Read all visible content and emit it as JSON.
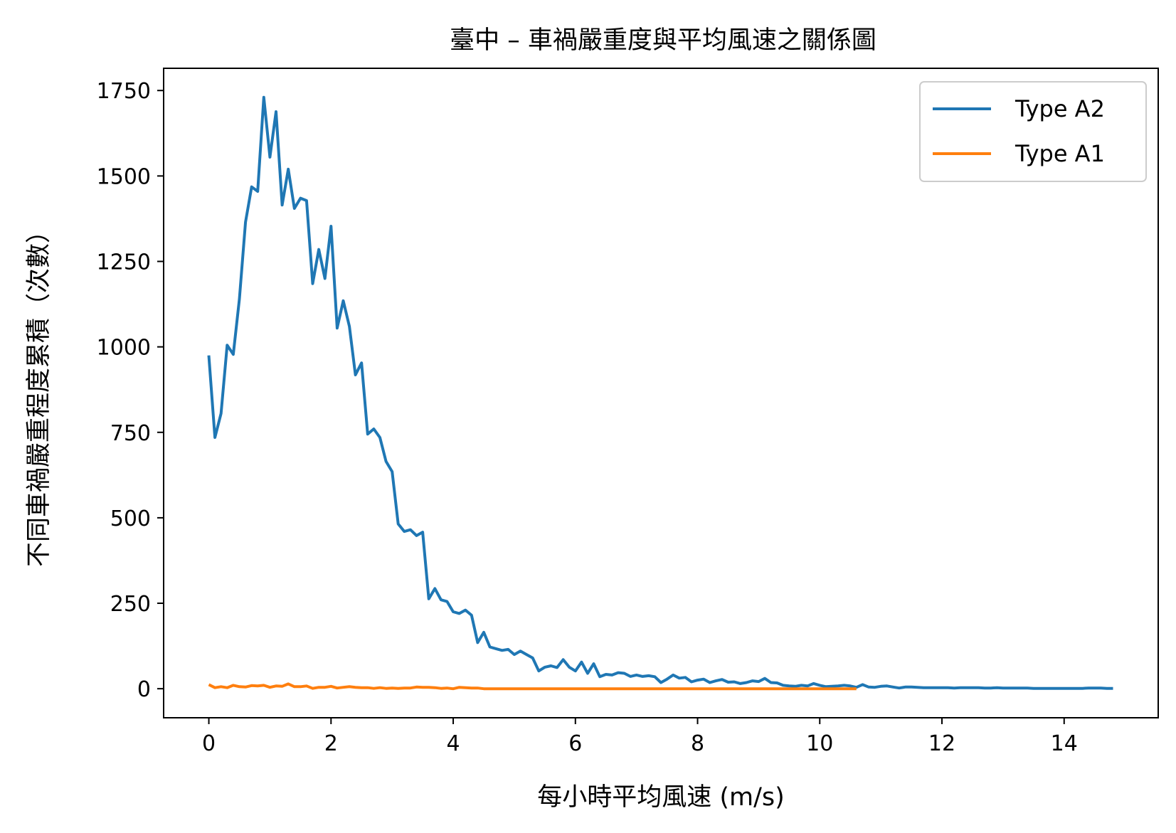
{
  "chart_data": {
    "type": "line",
    "title": "臺中 – 車禍嚴重度與平均風速之關係圖",
    "xlabel": "每小時平均風速 (m/s)",
    "ylabel": "不同車禍嚴重程度累積（次數）",
    "xlim": [
      -0.74,
      15.54
    ],
    "ylim": [
      -85,
      1815
    ],
    "xticks": [
      0,
      2,
      4,
      6,
      8,
      10,
      12,
      14
    ],
    "yticks": [
      0,
      250,
      500,
      750,
      1000,
      1250,
      1500,
      1750
    ],
    "grid": false,
    "legend_position": "top-right",
    "series": [
      {
        "name": "Type A2",
        "color": "#1f77b4",
        "x": [
          0,
          0.1,
          0.2,
          0.3,
          0.4,
          0.5,
          0.6,
          0.7,
          0.8,
          0.9,
          1.0,
          1.1,
          1.2,
          1.3,
          1.4,
          1.5,
          1.6,
          1.7,
          1.8,
          1.9,
          2.0,
          2.1,
          2.2,
          2.3,
          2.4,
          2.5,
          2.6,
          2.7,
          2.8,
          2.9,
          3.0,
          3.1,
          3.2,
          3.3,
          3.4,
          3.5,
          3.6,
          3.7,
          3.8,
          3.9,
          4.0,
          4.1,
          4.2,
          4.3,
          4.4,
          4.5,
          4.6,
          4.7,
          4.8,
          4.9,
          5.0,
          5.1,
          5.2,
          5.3,
          5.4,
          5.5,
          5.6,
          5.7,
          5.8,
          5.9,
          6.0,
          6.1,
          6.2,
          6.3,
          6.4,
          6.5,
          6.6,
          6.7,
          6.8,
          6.9,
          7.0,
          7.1,
          7.2,
          7.3,
          7.4,
          7.5,
          7.6,
          7.7,
          7.8,
          7.9,
          8.0,
          8.1,
          8.2,
          8.3,
          8.4,
          8.5,
          8.6,
          8.7,
          8.8,
          8.9,
          9.0,
          9.1,
          9.2,
          9.3,
          9.4,
          9.5,
          9.6,
          9.7,
          9.8,
          9.9,
          10.0,
          10.1,
          10.2,
          10.3,
          10.4,
          10.5,
          10.6,
          10.7,
          10.8,
          10.9,
          11.0,
          11.1,
          11.2,
          11.3,
          11.4,
          11.5,
          11.6,
          11.7,
          11.8,
          11.9,
          12.0,
          12.1,
          12.2,
          12.3,
          12.4,
          12.5,
          12.6,
          12.7,
          12.8,
          12.9,
          13.0,
          13.1,
          13.2,
          13.3,
          13.4,
          13.5,
          13.6,
          13.7,
          13.8,
          13.9,
          14.0,
          14.1,
          14.2,
          14.3,
          14.4,
          14.5,
          14.6,
          14.7,
          14.8
        ],
        "y": [
          975,
          735,
          805,
          1005,
          978,
          1140,
          1365,
          1468,
          1455,
          1730,
          1555,
          1688,
          1415,
          1520,
          1405,
          1435,
          1428,
          1185,
          1285,
          1200,
          1353,
          1055,
          1135,
          1060,
          918,
          953,
          745,
          760,
          735,
          665,
          635,
          482,
          460,
          465,
          448,
          458,
          263,
          293,
          260,
          255,
          225,
          220,
          230,
          215,
          135,
          165,
          122,
          117,
          112,
          115,
          100,
          110,
          100,
          90,
          52,
          63,
          67,
          62,
          85,
          63,
          52,
          78,
          45,
          73,
          35,
          42,
          40,
          47,
          45,
          36,
          40,
          36,
          38,
          35,
          18,
          28,
          40,
          31,
          33,
          20,
          25,
          28,
          18,
          23,
          27,
          19,
          20,
          15,
          18,
          23,
          21,
          30,
          18,
          17,
          10,
          8,
          7,
          10,
          8,
          15,
          10,
          6,
          7,
          8,
          10,
          8,
          4,
          12,
          5,
          4,
          7,
          8,
          5,
          2,
          5,
          5,
          4,
          3,
          3,
          3,
          3,
          3,
          2,
          3,
          3,
          3,
          3,
          2,
          2,
          3,
          2,
          2,
          2,
          2,
          2,
          1,
          1,
          1,
          1,
          1,
          1,
          1,
          1,
          1,
          2,
          2,
          2,
          1,
          1
        ],
        "note": "Series data estimated from the plotted line; representative sampling."
      },
      {
        "name": "Type A1",
        "color": "#ff7f0e",
        "x": [
          0,
          0.1,
          0.2,
          0.3,
          0.4,
          0.5,
          0.6,
          0.7,
          0.8,
          0.9,
          1.0,
          1.1,
          1.2,
          1.3,
          1.4,
          1.5,
          1.6,
          1.7,
          1.8,
          1.9,
          2.0,
          2.1,
          2.2,
          2.3,
          2.4,
          2.5,
          2.6,
          2.7,
          2.8,
          2.9,
          3.0,
          3.1,
          3.2,
          3.3,
          3.4,
          3.5,
          3.6,
          3.7,
          3.8,
          3.9,
          4.0,
          4.1,
          4.2,
          4.3,
          4.4,
          4.5,
          4.6,
          4.7,
          4.8,
          4.9,
          5.0,
          5.5,
          6.0,
          6.5,
          7.0,
          7.5,
          8.0,
          8.5,
          9.0,
          9.5,
          10.0,
          10.6
        ],
        "y": [
          12,
          3,
          6,
          3,
          10,
          6,
          5,
          9,
          8,
          10,
          4,
          8,
          7,
          14,
          6,
          6,
          8,
          1,
          4,
          4,
          7,
          2,
          4,
          6,
          4,
          3,
          3,
          1,
          3,
          1,
          2,
          1,
          2,
          2,
          5,
          4,
          4,
          3,
          1,
          2,
          0,
          4,
          3,
          2,
          2,
          0,
          0,
          0,
          0,
          0,
          0,
          0,
          0,
          0,
          0,
          0,
          0,
          0,
          0,
          0,
          0,
          0
        ]
      }
    ]
  }
}
